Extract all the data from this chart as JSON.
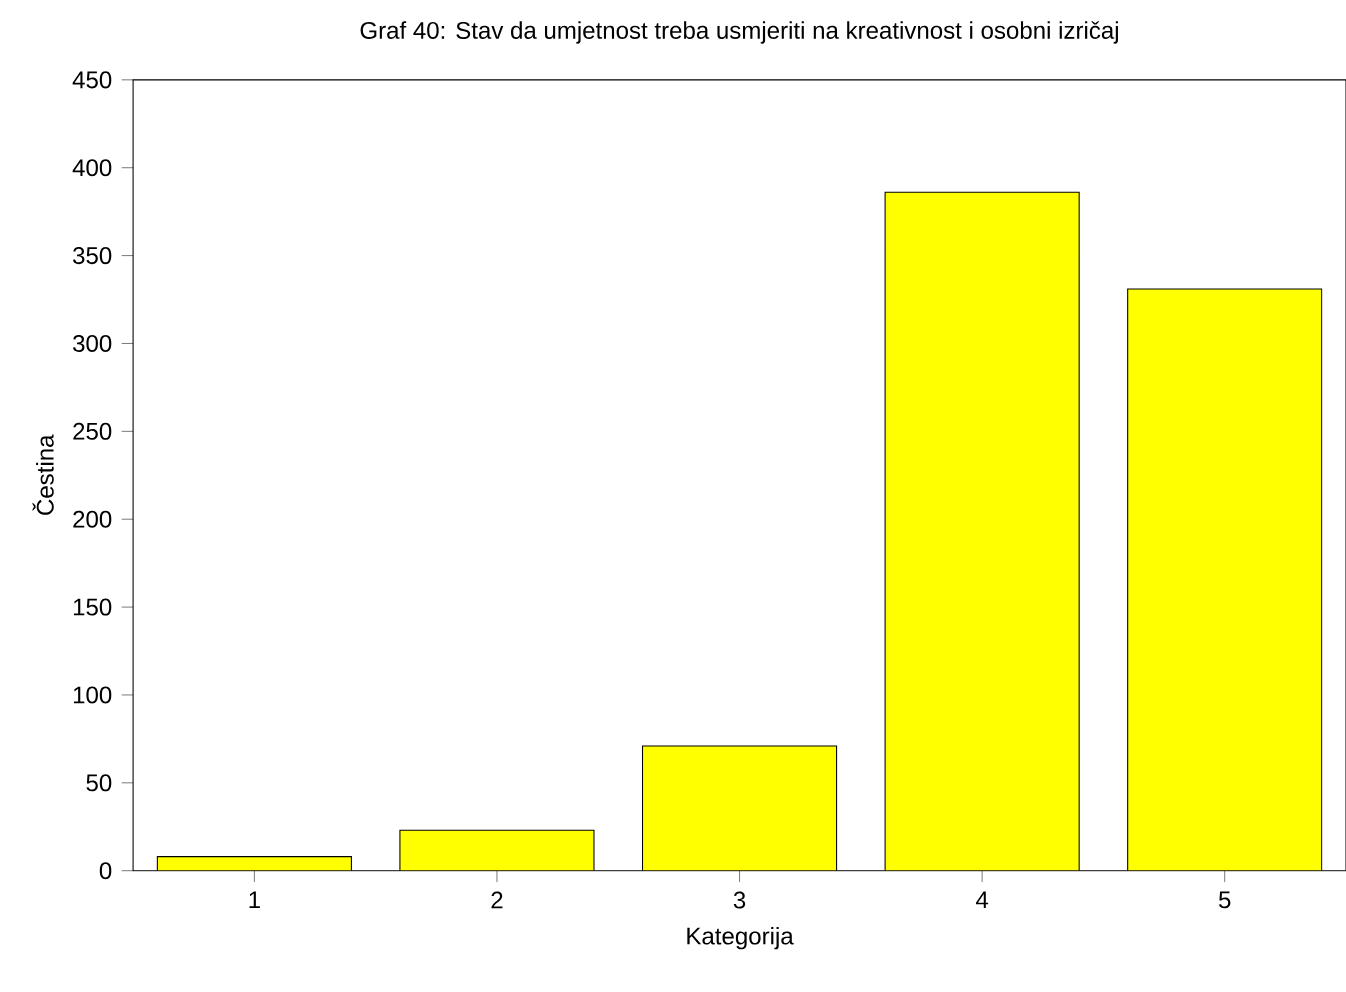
{
  "chart_data": {
    "type": "bar",
    "title": "Graf 40: Stav da umjetnost treba usmjeriti na kreativnost i osobni izričaj",
    "xlabel": "Kategorija",
    "ylabel": "Čestina",
    "categories": [
      "1",
      "2",
      "3",
      "4",
      "5"
    ],
    "values": [
      8,
      23,
      71,
      386,
      331
    ],
    "color": "#ffff00",
    "ylim": [
      0,
      450
    ],
    "yticks": [
      0,
      50,
      100,
      150,
      200,
      250,
      300,
      350,
      400,
      450
    ],
    "grid": false
  }
}
